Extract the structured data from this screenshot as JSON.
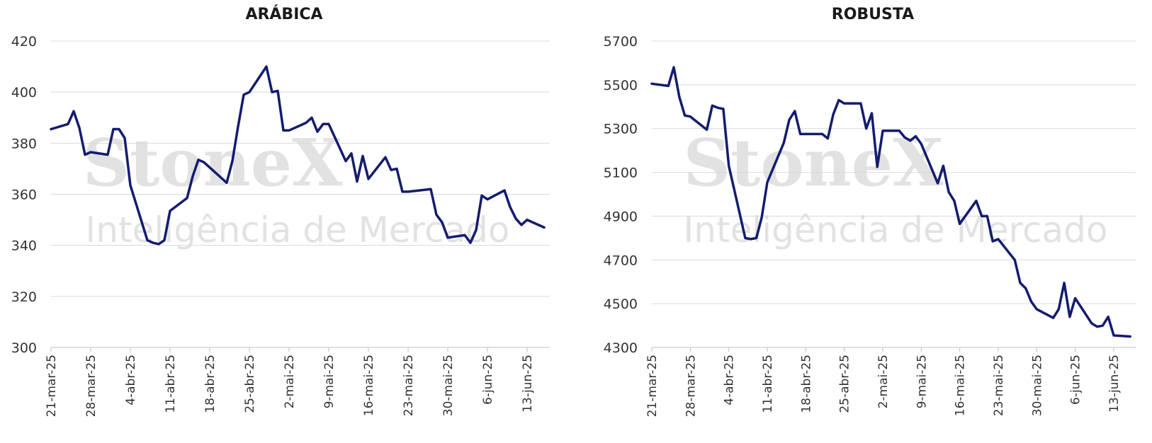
{
  "watermark": {
    "brand": "StoneX",
    "tagline": "Inteligência de Mercado"
  },
  "chart_data": [
    {
      "type": "line",
      "title": "ARÁBICA",
      "xlabel": "",
      "ylabel": "",
      "ylim": [
        300,
        420
      ],
      "yticks": [
        300,
        320,
        340,
        360,
        380,
        400,
        420
      ],
      "xlim": [
        "2025-03-21",
        "2025-06-17"
      ],
      "xticks": [
        {
          "date": "2025-03-21",
          "label": "21-mar-25"
        },
        {
          "date": "2025-03-28",
          "label": "28-mar-25"
        },
        {
          "date": "2025-04-04",
          "label": "4-abr-25"
        },
        {
          "date": "2025-04-11",
          "label": "11-abr-25"
        },
        {
          "date": "2025-04-18",
          "label": "18-abr-25"
        },
        {
          "date": "2025-04-25",
          "label": "25-abr-25"
        },
        {
          "date": "2025-05-02",
          "label": "2-mai-25"
        },
        {
          "date": "2025-05-09",
          "label": "9-mai-25"
        },
        {
          "date": "2025-05-16",
          "label": "16-mai-25"
        },
        {
          "date": "2025-05-23",
          "label": "23-mai-25"
        },
        {
          "date": "2025-05-30",
          "label": "30-mai-25"
        },
        {
          "date": "2025-06-06",
          "label": "6-jun-25"
        },
        {
          "date": "2025-06-13",
          "label": "13-jun-25"
        }
      ],
      "grid": true,
      "legend": "none",
      "color": "#141c6e",
      "series": [
        {
          "x": [
            "2025-03-21",
            "2025-03-24",
            "2025-03-25",
            "2025-03-26",
            "2025-03-27",
            "2025-03-28",
            "2025-03-31",
            "2025-04-01",
            "2025-04-02",
            "2025-04-03",
            "2025-04-04",
            "2025-04-07",
            "2025-04-08",
            "2025-04-09",
            "2025-04-10",
            "2025-04-11",
            "2025-04-14",
            "2025-04-15",
            "2025-04-16",
            "2025-04-17",
            "2025-04-21",
            "2025-04-22",
            "2025-04-23",
            "2025-04-24",
            "2025-04-25",
            "2025-04-28",
            "2025-04-29",
            "2025-04-30",
            "2025-05-01",
            "2025-05-02",
            "2025-05-05",
            "2025-05-06",
            "2025-05-07",
            "2025-05-08",
            "2025-05-09",
            "2025-05-12",
            "2025-05-13",
            "2025-05-14",
            "2025-05-15",
            "2025-05-16",
            "2025-05-19",
            "2025-05-20",
            "2025-05-21",
            "2025-05-22",
            "2025-05-23",
            "2025-05-27",
            "2025-05-28",
            "2025-05-29",
            "2025-05-30",
            "2025-06-02",
            "2025-06-03",
            "2025-06-04",
            "2025-06-05",
            "2025-06-06",
            "2025-06-09",
            "2025-06-10",
            "2025-06-11",
            "2025-06-12",
            "2025-06-13",
            "2025-06-16"
          ],
          "y": [
            385.5,
            387.5,
            392.5,
            386,
            375.5,
            376.5,
            375.5,
            385.5,
            385.5,
            382,
            363.5,
            342,
            341,
            340.5,
            342,
            353.5,
            358.5,
            367,
            373.5,
            372.5,
            364.5,
            373,
            386.5,
            399,
            400,
            410,
            400,
            400.5,
            385,
            385,
            388,
            390,
            384.5,
            387.5,
            387.5,
            373,
            376,
            365,
            375,
            366,
            374.5,
            369.5,
            370,
            361,
            361,
            362,
            352,
            349,
            343,
            344,
            341,
            346,
            359.5,
            358,
            361.5,
            355,
            350.5,
            348,
            350,
            347
          ]
        }
      ]
    },
    {
      "type": "line",
      "title": "ROBUSTA",
      "xlabel": "",
      "ylabel": "",
      "ylim": [
        4300,
        5700
      ],
      "yticks": [
        4300,
        4500,
        4700,
        4900,
        5100,
        5300,
        5500,
        5700
      ],
      "xlim": [
        "2025-03-21",
        "2025-06-17"
      ],
      "xticks": [
        {
          "date": "2025-03-21",
          "label": "21-mar-25"
        },
        {
          "date": "2025-03-28",
          "label": "28-mar-25"
        },
        {
          "date": "2025-04-04",
          "label": "4-abr-25"
        },
        {
          "date": "2025-04-11",
          "label": "11-abr-25"
        },
        {
          "date": "2025-04-18",
          "label": "18-abr-25"
        },
        {
          "date": "2025-04-25",
          "label": "25-abr-25"
        },
        {
          "date": "2025-05-02",
          "label": "2-mai-25"
        },
        {
          "date": "2025-05-09",
          "label": "9-mai-25"
        },
        {
          "date": "2025-05-16",
          "label": "16-mai-25"
        },
        {
          "date": "2025-05-23",
          "label": "23-mai-25"
        },
        {
          "date": "2025-05-30",
          "label": "30-mai-25"
        },
        {
          "date": "2025-06-06",
          "label": "6-jun-25"
        },
        {
          "date": "2025-06-13",
          "label": "13-jun-25"
        }
      ],
      "grid": true,
      "legend": "none",
      "color": "#141c6e",
      "series": [
        {
          "x": [
            "2025-03-21",
            "2025-03-24",
            "2025-03-25",
            "2025-03-26",
            "2025-03-27",
            "2025-03-28",
            "2025-03-31",
            "2025-04-01",
            "2025-04-02",
            "2025-04-03",
            "2025-04-04",
            "2025-04-07",
            "2025-04-08",
            "2025-04-09",
            "2025-04-10",
            "2025-04-11",
            "2025-04-14",
            "2025-04-15",
            "2025-04-16",
            "2025-04-17",
            "2025-04-21",
            "2025-04-22",
            "2025-04-23",
            "2025-04-24",
            "2025-04-25",
            "2025-04-28",
            "2025-04-29",
            "2025-04-30",
            "2025-05-01",
            "2025-05-02",
            "2025-05-05",
            "2025-05-06",
            "2025-05-07",
            "2025-05-08",
            "2025-05-09",
            "2025-05-12",
            "2025-05-13",
            "2025-05-14",
            "2025-05-15",
            "2025-05-16",
            "2025-05-19",
            "2025-05-20",
            "2025-05-21",
            "2025-05-22",
            "2025-05-23",
            "2025-05-26",
            "2025-05-27",
            "2025-05-28",
            "2025-05-29",
            "2025-05-30",
            "2025-06-02",
            "2025-06-03",
            "2025-06-04",
            "2025-06-05",
            "2025-06-06",
            "2025-06-09",
            "2025-06-10",
            "2025-06-11",
            "2025-06-12",
            "2025-06-13",
            "2025-06-16"
          ],
          "y": [
            5505,
            5495,
            5580,
            5445,
            5360,
            5355,
            5295,
            5405,
            5395,
            5390,
            5130,
            4800,
            4795,
            4800,
            4895,
            5055,
            5235,
            5340,
            5380,
            5275,
            5275,
            5255,
            5365,
            5430,
            5415,
            5415,
            5300,
            5370,
            5125,
            5290,
            5290,
            5260,
            5245,
            5265,
            5230,
            5050,
            5130,
            5010,
            4970,
            4865,
            4970,
            4900,
            4900,
            4785,
            4795,
            4700,
            4595,
            4570,
            4510,
            4475,
            4435,
            4475,
            4595,
            4440,
            4525,
            4410,
            4395,
            4400,
            4440,
            4355,
            4350
          ]
        }
      ]
    }
  ]
}
